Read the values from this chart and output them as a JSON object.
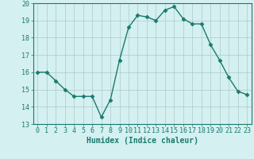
{
  "x": [
    0,
    1,
    2,
    3,
    4,
    5,
    6,
    7,
    8,
    9,
    10,
    11,
    12,
    13,
    14,
    15,
    16,
    17,
    18,
    19,
    20,
    21,
    22,
    23
  ],
  "y": [
    16.0,
    16.0,
    15.5,
    15.0,
    14.6,
    14.6,
    14.6,
    13.4,
    14.4,
    16.7,
    18.6,
    19.3,
    19.2,
    19.0,
    19.6,
    19.8,
    19.1,
    18.8,
    18.8,
    17.6,
    16.7,
    15.7,
    14.9,
    14.7
  ],
  "line_color": "#1a7a6e",
  "marker": "D",
  "markersize": 2.5,
  "linewidth": 1.0,
  "xlabel": "Humidex (Indice chaleur)",
  "xlim": [
    -0.5,
    23.5
  ],
  "ylim": [
    13,
    20
  ],
  "yticks": [
    13,
    14,
    15,
    16,
    17,
    18,
    19,
    20
  ],
  "xticks": [
    0,
    1,
    2,
    3,
    4,
    5,
    6,
    7,
    8,
    9,
    10,
    11,
    12,
    13,
    14,
    15,
    16,
    17,
    18,
    19,
    20,
    21,
    22,
    23
  ],
  "bg_color": "#d4f0f0",
  "grid_color": "#b0c8c8",
  "tick_color": "#1a7a6e",
  "xlabel_fontsize": 7,
  "tick_fontsize": 6
}
